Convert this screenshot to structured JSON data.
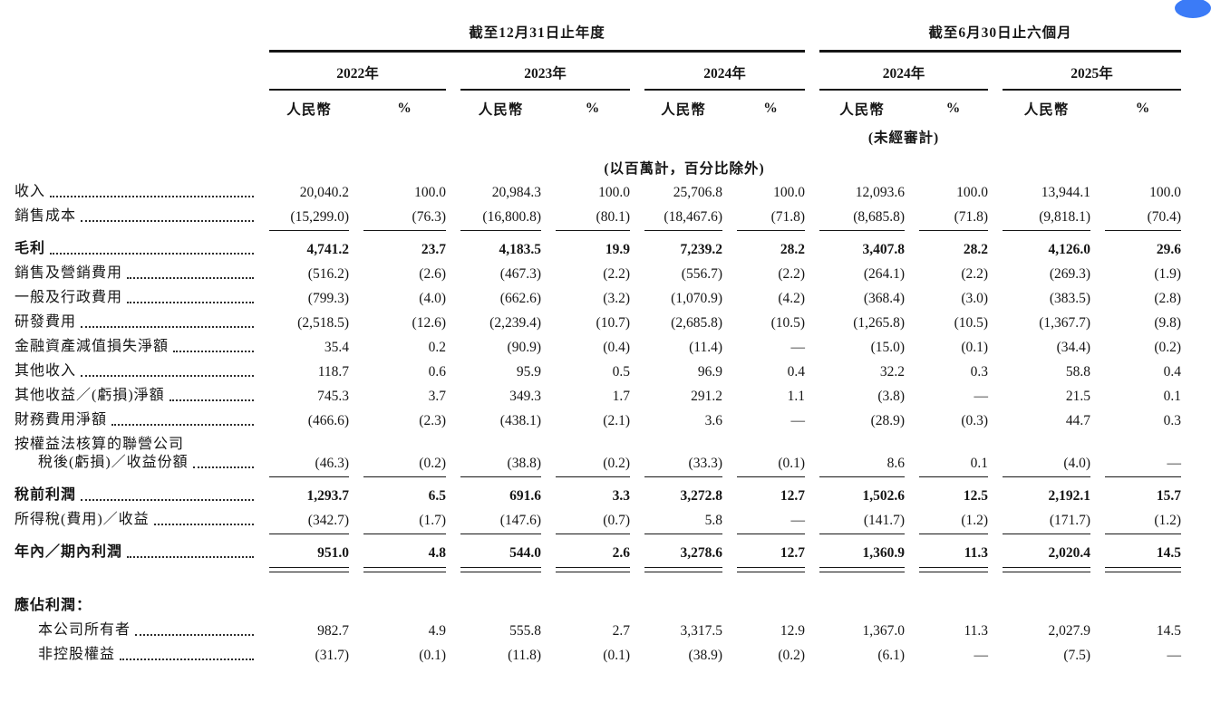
{
  "decoration": {
    "corner_circle_color": "#3b7bf7"
  },
  "table": {
    "group_headers": [
      {
        "label": "截至12月31日止年度"
      },
      {
        "label": "截至6月30日止六個月"
      }
    ],
    "year_headers": [
      "2022年",
      "2023年",
      "2024年",
      "2024年",
      "2025年"
    ],
    "col_headers": {
      "rmb": "人民幣",
      "pct": "%"
    },
    "unaudited_note": "(未經審計)",
    "unit_note": "(以百萬計，百分比除外)",
    "rows": [
      {
        "label": "收入",
        "leaders": true,
        "bold": false,
        "values": [
          "20,040.2",
          "100.0",
          "20,984.3",
          "100.0",
          "25,706.8",
          "100.0",
          "12,093.6",
          "100.0",
          "13,944.1",
          "100.0"
        ]
      },
      {
        "label": "銷售成本",
        "leaders": true,
        "bold": false,
        "rule_after": "single",
        "values": [
          "(15,299.0)",
          "(76.3)",
          "(16,800.8)",
          "(80.1)",
          "(18,467.6)",
          "(71.8)",
          "(8,685.8)",
          "(71.8)",
          "(9,818.1)",
          "(70.4)"
        ]
      },
      {
        "label": "毛利",
        "leaders": true,
        "bold": true,
        "values": [
          "4,741.2",
          "23.7",
          "4,183.5",
          "19.9",
          "7,239.2",
          "28.2",
          "3,407.8",
          "28.2",
          "4,126.0",
          "29.6"
        ]
      },
      {
        "label": "銷售及營銷費用",
        "leaders": true,
        "bold": false,
        "values": [
          "(516.2)",
          "(2.6)",
          "(467.3)",
          "(2.2)",
          "(556.7)",
          "(2.2)",
          "(264.1)",
          "(2.2)",
          "(269.3)",
          "(1.9)"
        ]
      },
      {
        "label": "一般及行政費用",
        "leaders": true,
        "bold": false,
        "values": [
          "(799.3)",
          "(4.0)",
          "(662.6)",
          "(3.2)",
          "(1,070.9)",
          "(4.2)",
          "(368.4)",
          "(3.0)",
          "(383.5)",
          "(2.8)"
        ]
      },
      {
        "label": "研發費用",
        "leaders": true,
        "bold": false,
        "values": [
          "(2,518.5)",
          "(12.6)",
          "(2,239.4)",
          "(10.7)",
          "(2,685.8)",
          "(10.5)",
          "(1,265.8)",
          "(10.5)",
          "(1,367.7)",
          "(9.8)"
        ]
      },
      {
        "label": "金融資產減值損失淨額",
        "leaders": true,
        "bold": false,
        "values": [
          "35.4",
          "0.2",
          "(90.9)",
          "(0.4)",
          "(11.4)",
          "—",
          "(15.0)",
          "(0.1)",
          "(34.4)",
          "(0.2)"
        ]
      },
      {
        "label": "其他收入",
        "leaders": true,
        "bold": false,
        "values": [
          "118.7",
          "0.6",
          "95.9",
          "0.5",
          "96.9",
          "0.4",
          "32.2",
          "0.3",
          "58.8",
          "0.4"
        ]
      },
      {
        "label": "其他收益／(虧損)淨額",
        "leaders": true,
        "bold": false,
        "values": [
          "745.3",
          "3.7",
          "349.3",
          "1.7",
          "291.2",
          "1.1",
          "(3.8)",
          "—",
          "21.5",
          "0.1"
        ]
      },
      {
        "label": "財務費用淨額",
        "leaders": true,
        "bold": false,
        "values": [
          "(466.6)",
          "(2.3)",
          "(438.1)",
          "(2.1)",
          "3.6",
          "—",
          "(28.9)",
          "(0.3)",
          "44.7",
          "0.3"
        ]
      },
      {
        "label": "按權益法核算的聯營公司",
        "label2": "稅後(虧損)／收益份額",
        "leaders": true,
        "bold": false,
        "rule_after": "single",
        "values": [
          "(46.3)",
          "(0.2)",
          "(38.8)",
          "(0.2)",
          "(33.3)",
          "(0.1)",
          "8.6",
          "0.1",
          "(4.0)",
          "—"
        ]
      },
      {
        "label": "稅前利潤",
        "leaders": true,
        "bold": true,
        "values": [
          "1,293.7",
          "6.5",
          "691.6",
          "3.3",
          "3,272.8",
          "12.7",
          "1,502.6",
          "12.5",
          "2,192.1",
          "15.7"
        ]
      },
      {
        "label": "所得稅(費用)／收益",
        "leaders": true,
        "bold": false,
        "rule_after": "single",
        "values": [
          "(342.7)",
          "(1.7)",
          "(147.6)",
          "(0.7)",
          "5.8",
          "—",
          "(141.7)",
          "(1.2)",
          "(171.7)",
          "(1.2)"
        ]
      },
      {
        "label": "年內／期內利潤",
        "leaders": true,
        "bold": true,
        "rule_after": "double",
        "values": [
          "951.0",
          "4.8",
          "544.0",
          "2.6",
          "3,278.6",
          "12.7",
          "1,360.9",
          "11.3",
          "2,020.4",
          "14.5"
        ]
      },
      {
        "type": "gap"
      },
      {
        "label": "應佔利潤：",
        "leaders": false,
        "bold": true,
        "values": []
      },
      {
        "label": "本公司所有者",
        "leaders": true,
        "bold": false,
        "indent": true,
        "values": [
          "982.7",
          "4.9",
          "555.8",
          "2.7",
          "3,317.5",
          "12.9",
          "1,367.0",
          "11.3",
          "2,027.9",
          "14.5"
        ]
      },
      {
        "label": "非控股權益",
        "leaders": true,
        "bold": false,
        "indent": true,
        "values": [
          "(31.7)",
          "(0.1)",
          "(11.8)",
          "(0.1)",
          "(38.9)",
          "(0.2)",
          "(6.1)",
          "—",
          "(7.5)",
          "—"
        ]
      }
    ]
  }
}
